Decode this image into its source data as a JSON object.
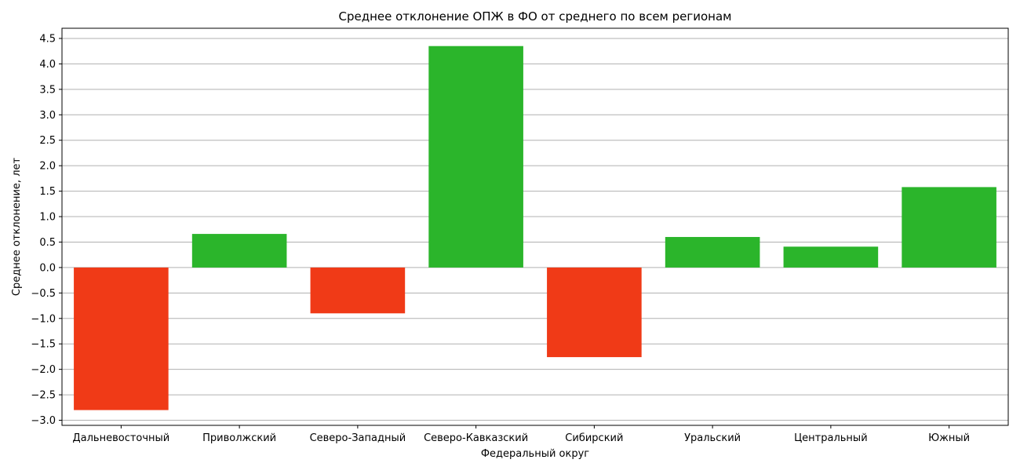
{
  "chart_data": {
    "type": "bar",
    "title": "Среднее отклонение ОПЖ в ФО от среднего по всем регионам",
    "xlabel": "Федеральный округ",
    "ylabel": "Среднее отклонение, лет",
    "categories": [
      "Дальневосточный",
      "Приволжский",
      "Северо-Западный",
      "Северо-Кавказский",
      "Сибирский",
      "Уральский",
      "Центральный",
      "Южный"
    ],
    "values": [
      -2.8,
      0.66,
      -0.9,
      4.35,
      -1.76,
      0.6,
      0.41,
      1.58
    ],
    "ylim": [
      -3.1,
      4.7
    ],
    "yticks": [
      -3.0,
      -2.5,
      -2.0,
      -1.5,
      -1.0,
      -0.5,
      0.0,
      0.5,
      1.0,
      1.5,
      2.0,
      2.5,
      3.0,
      3.5,
      4.0,
      4.5
    ],
    "ytick_labels": [
      "−3.0",
      "−2.5",
      "−2.0",
      "−1.5",
      "−1.0",
      "−0.5",
      "0.0",
      "0.5",
      "1.0",
      "1.5",
      "2.0",
      "2.5",
      "3.0",
      "3.5",
      "4.0",
      "4.5"
    ],
    "grid": "y",
    "legend": "none",
    "colors": {
      "positive": "#2bb52b",
      "negative": "#f03a17",
      "grid": "#b0b0b0",
      "axis": "#000000"
    }
  }
}
